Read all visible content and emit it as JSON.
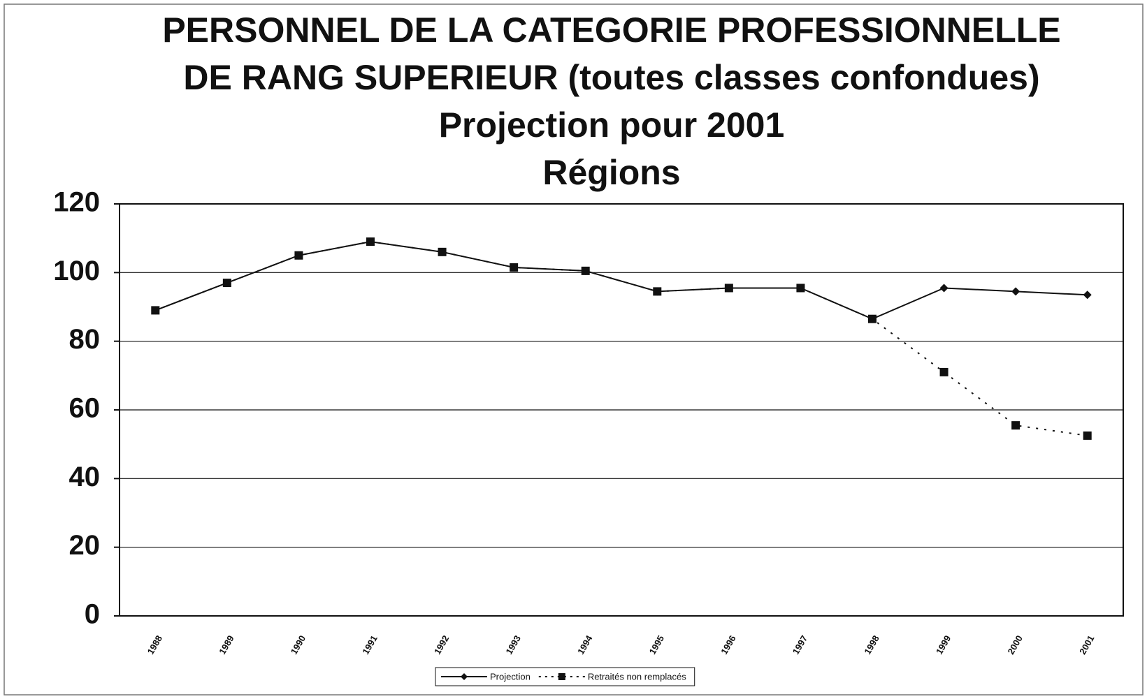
{
  "chart_data": {
    "type": "line",
    "title": [
      "PERSONNEL DE LA CATEGORIE PROFESSIONNELLE",
      "DE RANG SUPERIEUR (toutes classes confondues)",
      "Projection pour 2001",
      "Régions"
    ],
    "categories": [
      "1988",
      "1989",
      "1990",
      "1991",
      "1992",
      "1993",
      "1994",
      "1995",
      "1996",
      "1997",
      "1998",
      "1999",
      "2000",
      "2001"
    ],
    "series": [
      {
        "name": "Projection",
        "color": "#111111",
        "marker": "diamond",
        "dash": "solid",
        "values": [
          89,
          97,
          105,
          109,
          106,
          101.5,
          100.5,
          94.5,
          95.5,
          95.5,
          86.5,
          95.5,
          94.5,
          93.5
        ]
      },
      {
        "name": "Retraités non remplacés",
        "color": "#111111",
        "marker": "square",
        "dash": "dotted",
        "values": [
          89,
          97,
          105,
          109,
          106,
          101.5,
          100.5,
          94.5,
          95.5,
          95.5,
          86.5,
          71,
          55.5,
          52.5
        ]
      }
    ],
    "ylim": [
      0,
      120
    ],
    "yticks": [
      0,
      20,
      40,
      60,
      80,
      100,
      120
    ],
    "grid": true,
    "legend": "bottom"
  }
}
